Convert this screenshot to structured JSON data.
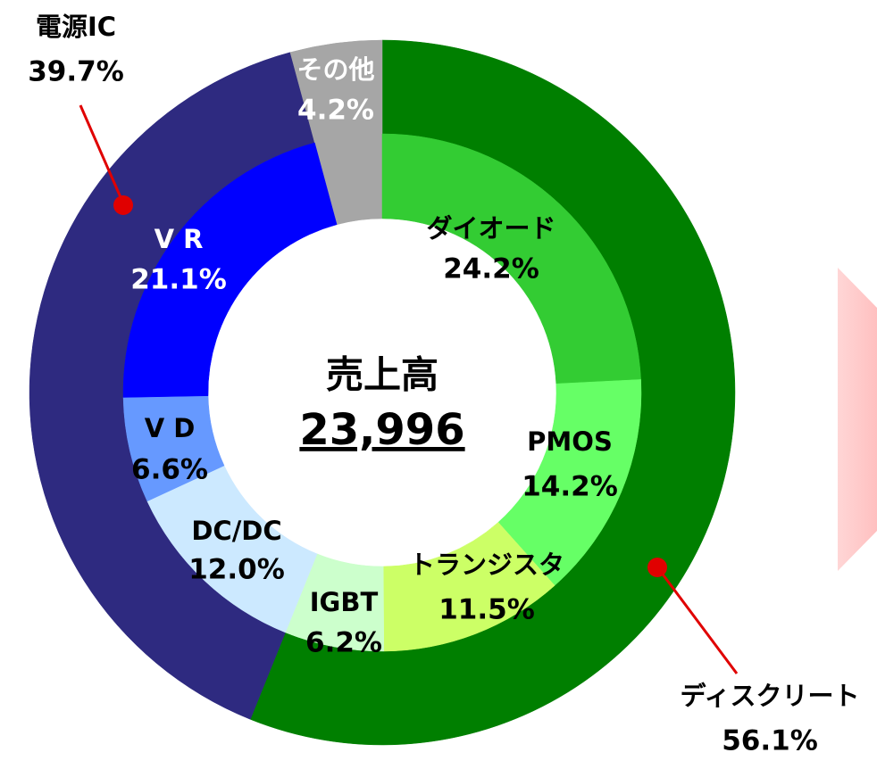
{
  "chart_data": {
    "type": "pie",
    "center_title": "売上高",
    "center_value": "23,996",
    "rings": [
      {
        "categories": [
          "ディスクリート",
          "電源IC",
          "その他"
        ],
        "values": [
          56.1,
          39.7,
          4.2
        ],
        "value_labels": [
          "56.1%",
          "39.7%",
          "4.2%"
        ],
        "colors": [
          "#007f00",
          "#2e2a80",
          "#a6a6a6"
        ]
      },
      {
        "categories": [
          "ダイオード",
          "PMOS",
          "トランジスタ",
          "IGBT",
          "DC/DC",
          "V D",
          "V R"
        ],
        "values": [
          24.2,
          14.2,
          11.5,
          6.2,
          12.0,
          6.6,
          21.1
        ],
        "value_labels": [
          "24.2%",
          "14.2%",
          "11.5%",
          "6.2%",
          "12.0%",
          "6.6%",
          "21.1%"
        ],
        "colors": [
          "#33cc33",
          "#66ff66",
          "#ccff66",
          "#ccffcc",
          "#cce9ff",
          "#6699ff",
          "#0000ff"
        ]
      }
    ]
  }
}
